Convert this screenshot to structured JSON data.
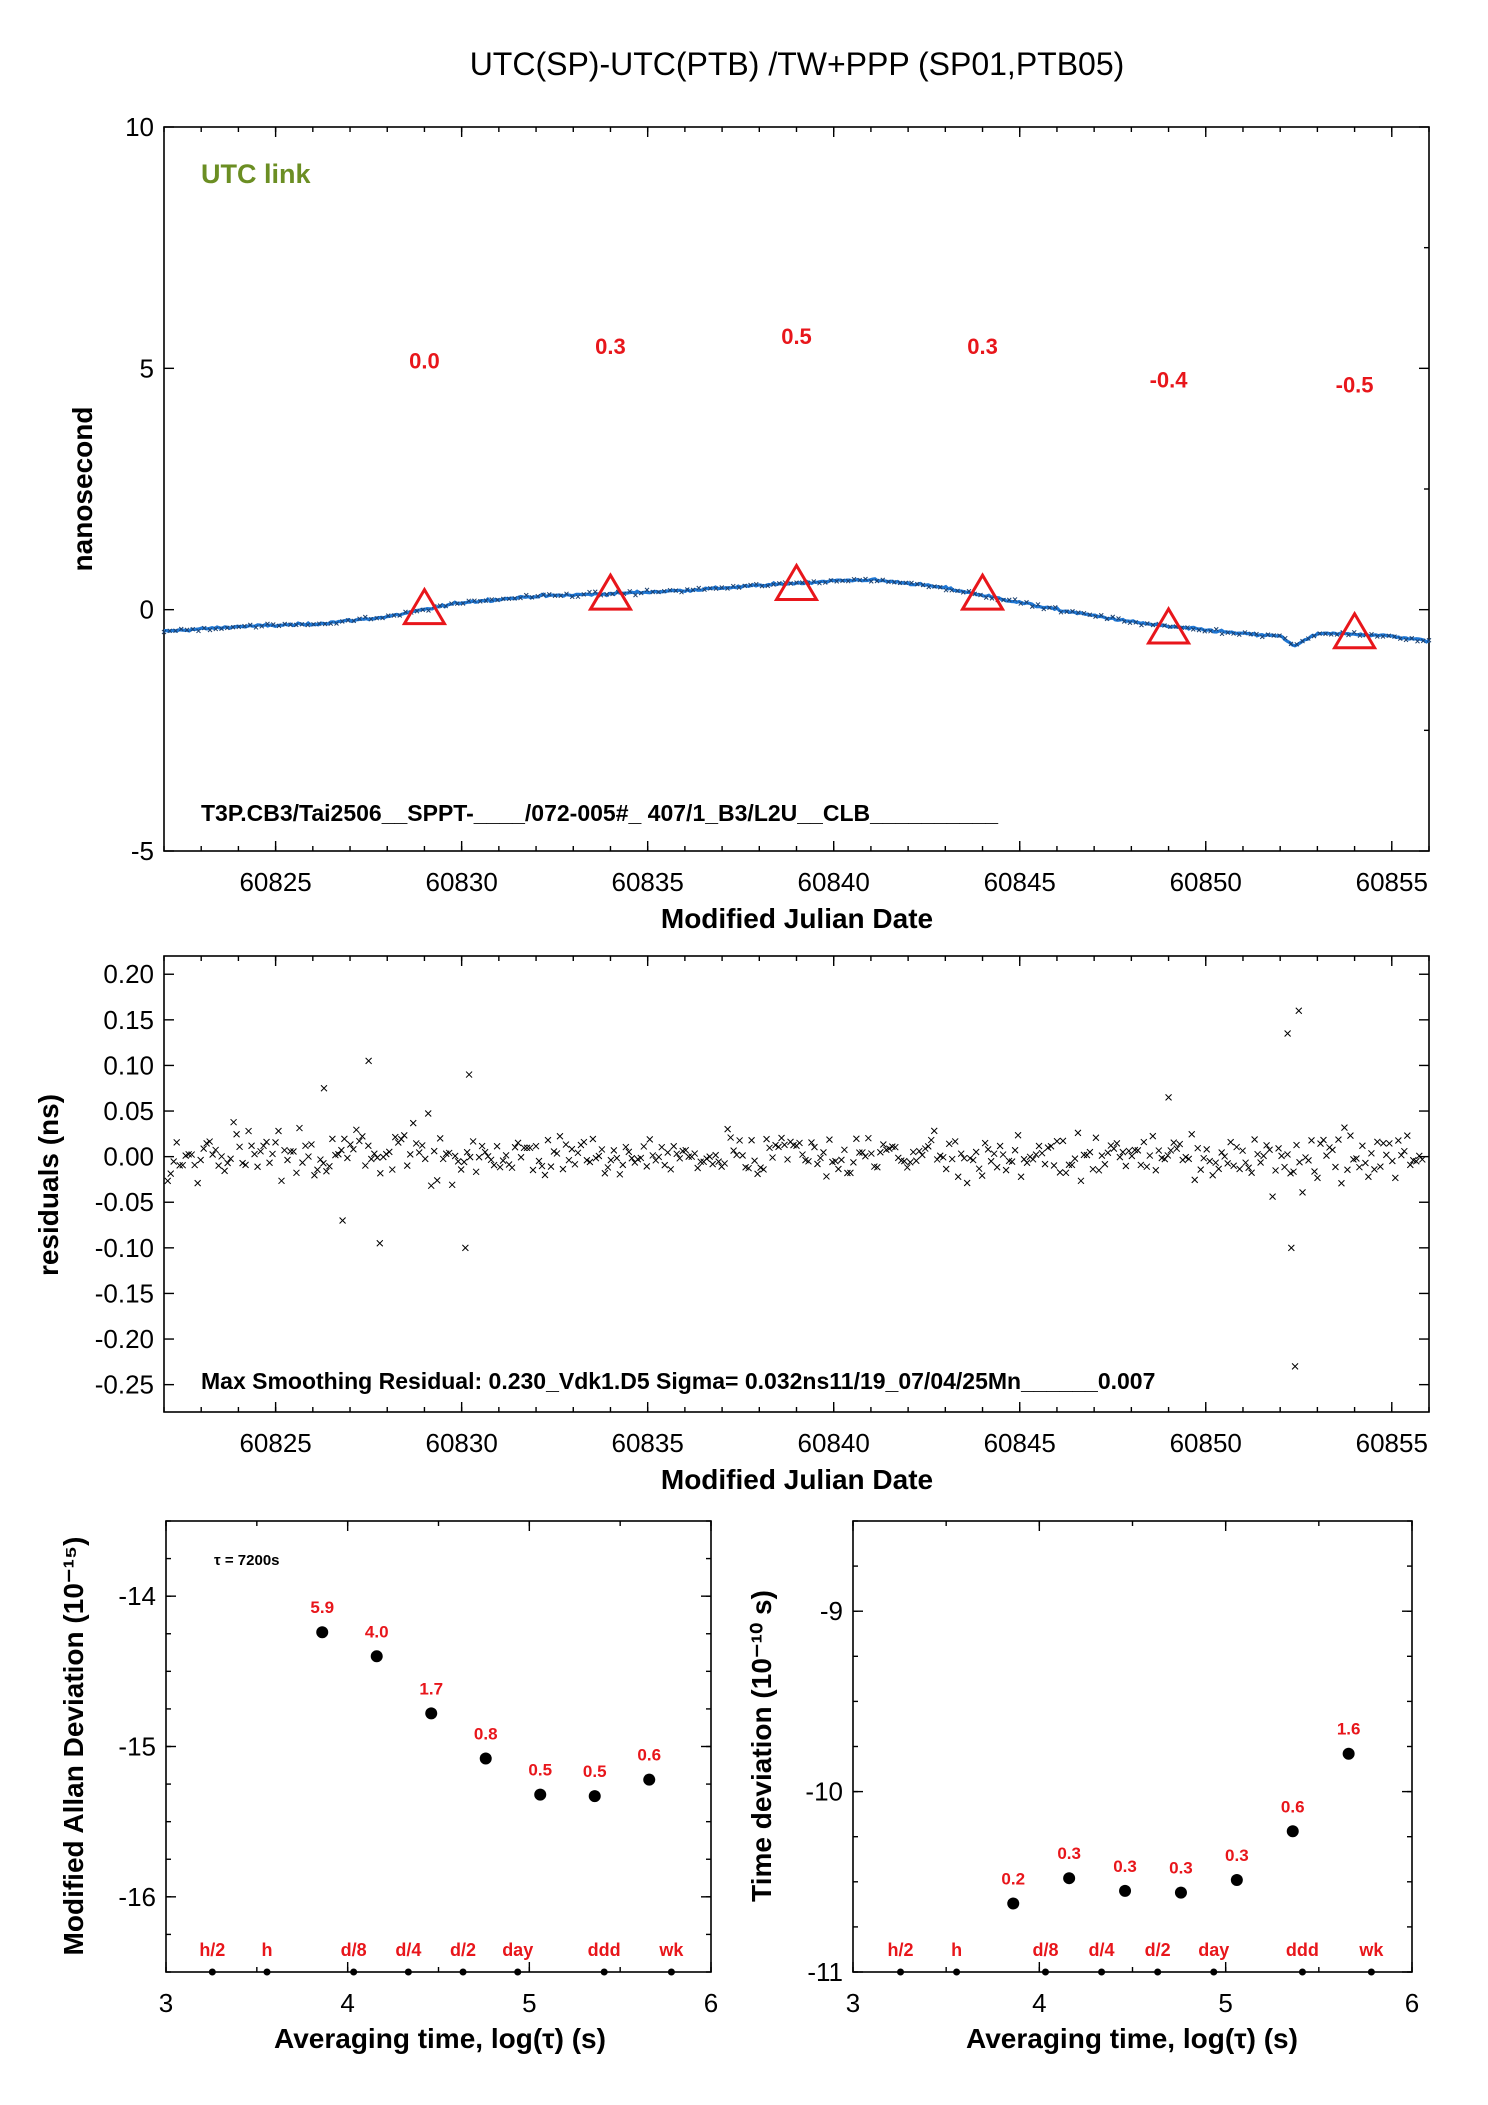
{
  "title": "UTC(SP)-UTC(PTB)  /TW+PPP  (SP01,PTB05)",
  "colors": {
    "series": "#1f77d4",
    "markers": "#e8161b",
    "link_label": "#6b8e23",
    "points": "#000000"
  },
  "chart_data": [
    {
      "type": "line",
      "name": "main",
      "xlabel": "Modified Julian Date",
      "ylabel": "nanosecond",
      "xlim": [
        60822,
        60856
      ],
      "ylim": [
        -5,
        10
      ],
      "xticks": [
        "60825",
        "60830",
        "60835",
        "60840",
        "60845",
        "60850",
        "60855"
      ],
      "yticks": [
        "-5",
        "0",
        "5",
        "10"
      ],
      "link_label": "UTC link",
      "footer_text": "T3P.CB3/Tai2506__SPPT-____/072-005#_  407/1_B3/L2U__CLB__________",
      "series": [
        {
          "x": [
            60822,
            60824,
            60826,
            60828,
            60829,
            60830,
            60832,
            60834,
            60836,
            60838,
            60839,
            60840,
            60841,
            60842,
            60843,
            60844,
            60846,
            60848,
            60849,
            60850,
            60851,
            60852,
            60852.4,
            60853,
            60854,
            60855,
            60856
          ],
          "y": [
            -0.45,
            -0.35,
            -0.3,
            -0.15,
            0.0,
            0.15,
            0.28,
            0.33,
            0.4,
            0.5,
            0.55,
            0.6,
            0.62,
            0.55,
            0.45,
            0.3,
            0.0,
            -0.25,
            -0.35,
            -0.42,
            -0.5,
            -0.55,
            -0.75,
            -0.5,
            -0.5,
            -0.55,
            -0.65
          ]
        }
      ],
      "markers": {
        "x": [
          60829,
          60834,
          60839,
          60844,
          60849,
          60854
        ],
        "y": [
          0.0,
          0.3,
          0.5,
          0.3,
          -0.4,
          -0.5
        ]
      },
      "marker_labels": [
        "0.0",
        "0.3",
        "0.5",
        "0.3",
        "-0.4",
        "-0.5"
      ]
    },
    {
      "type": "scatter",
      "name": "residuals",
      "xlabel": "Modified Julian Date",
      "ylabel": "residuals (ns)",
      "xlim": [
        60822,
        60856
      ],
      "ylim": [
        -0.28,
        0.22
      ],
      "xticks": [
        "60825",
        "60830",
        "60835",
        "60840",
        "60845",
        "60850",
        "60855"
      ],
      "yticks": [
        "-0.25",
        "-0.20",
        "-0.15",
        "-0.10",
        "-0.05",
        "0.00",
        "0.05",
        "0.10",
        "0.15",
        "0.20"
      ],
      "footer_text": "Max Smoothing Residual: 0.230_Vdk1.D5  Sigma= 0.032ns11/19_07/04/25Mn______0.007",
      "outliers": {
        "x": [
          60827.5,
          60830.2,
          60830.1,
          60827.8,
          60826.3,
          60852.2,
          60852.5,
          60852.3,
          60852.4,
          60849.0,
          60826.8
        ],
        "y": [
          0.105,
          0.09,
          -0.1,
          -0.095,
          0.075,
          0.135,
          0.16,
          -0.1,
          -0.23,
          0.065,
          -0.07
        ]
      }
    },
    {
      "type": "scatter",
      "name": "mdev",
      "xlabel": "Averaging time, log(τ) (s)",
      "ylabel": "Modified Allan Deviation (10⁻¹⁵)",
      "xlim": [
        3,
        6
      ],
      "ylim": [
        -16.5,
        -13.5
      ],
      "xticks": [
        "3",
        "4",
        "5",
        "6"
      ],
      "yticks": [
        "-14",
        "-15",
        "-16"
      ],
      "annotation": "τ = 7200s",
      "x": [
        3.86,
        4.16,
        4.46,
        4.76,
        5.06,
        5.36,
        5.66
      ],
      "y": [
        -14.24,
        -14.4,
        -14.78,
        -15.08,
        -15.32,
        -15.33,
        -15.22
      ],
      "point_labels": [
        "5.9",
        "4.0",
        "1.7",
        "0.8",
        "0.5",
        "0.5",
        "0.6"
      ],
      "period_labels": [
        "h/2",
        "h",
        "d/8",
        "d/4",
        "d/2",
        "day",
        "ddd",
        "wk"
      ],
      "period_x": [
        3.255,
        3.556,
        4.033,
        4.334,
        4.635,
        4.936,
        5.412,
        5.782
      ]
    },
    {
      "type": "scatter",
      "name": "tdev",
      "xlabel": "Averaging time, log(τ) (s)",
      "ylabel": "Time deviation (10⁻¹⁰ s)",
      "xlim": [
        3,
        6
      ],
      "ylim": [
        -11,
        -8.5
      ],
      "xticks": [
        "3",
        "4",
        "5",
        "6"
      ],
      "yticks": [
        "-9",
        "-10",
        "-11"
      ],
      "x": [
        3.86,
        4.16,
        4.46,
        4.76,
        5.06,
        5.36,
        5.66
      ],
      "y": [
        -10.62,
        -10.48,
        -10.55,
        -10.56,
        -10.49,
        -10.22,
        -9.79
      ],
      "point_labels": [
        "0.2",
        "0.3",
        "0.3",
        "0.3",
        "0.3",
        "0.6",
        "1.6"
      ],
      "period_labels": [
        "h/2",
        "h",
        "d/8",
        "d/4",
        "d/2",
        "day",
        "ddd",
        "wk"
      ],
      "period_x": [
        3.255,
        3.556,
        4.033,
        4.334,
        4.635,
        4.936,
        5.412,
        5.782
      ]
    }
  ]
}
